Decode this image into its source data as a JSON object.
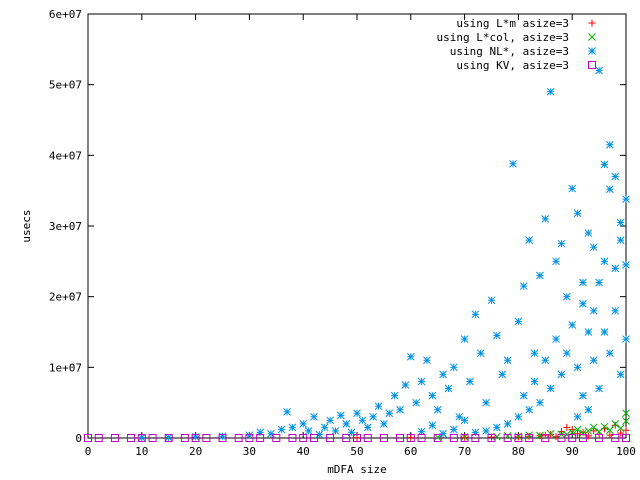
{
  "chart_data": {
    "type": "scatter",
    "title": "",
    "xlabel": "mDFA size",
    "ylabel": "usecs",
    "xlim": [
      0,
      100
    ],
    "ylim": [
      0,
      60000000
    ],
    "x_ticks": [
      0,
      10,
      20,
      30,
      40,
      50,
      60,
      70,
      80,
      90,
      100
    ],
    "x_tick_labels": [
      "0",
      "10",
      "20",
      "30",
      "40",
      "50",
      "60",
      "70",
      "80",
      "90",
      "100"
    ],
    "y_ticks": [
      0,
      10000000,
      20000000,
      30000000,
      40000000,
      50000000,
      60000000
    ],
    "y_tick_labels": [
      "0",
      "1e+07",
      "2e+07",
      "3e+07",
      "4e+07",
      "5e+07",
      "6e+07"
    ],
    "grid": false,
    "legend_position": "top-right",
    "series": [
      {
        "name": "using L*m asize=3",
        "marker": "plus",
        "color": "#ff0000",
        "points": [
          [
            80,
            150000
          ],
          [
            82,
            250000
          ],
          [
            84,
            300000
          ],
          [
            85,
            400000
          ],
          [
            86,
            500000
          ],
          [
            87,
            200000
          ],
          [
            88,
            900000
          ],
          [
            89,
            1500000
          ],
          [
            90,
            1200000
          ],
          [
            91,
            600000
          ],
          [
            92,
            800000
          ],
          [
            93,
            300000
          ],
          [
            94,
            1000000
          ],
          [
            95,
            500000
          ],
          [
            96,
            1300000
          ],
          [
            97,
            400000
          ],
          [
            98,
            1800000
          ],
          [
            99,
            700000
          ],
          [
            100,
            1100000
          ],
          [
            70,
            100000
          ],
          [
            75,
            120000
          ],
          [
            60,
            60000
          ],
          [
            50,
            40000
          ]
        ]
      },
      {
        "name": "using L*col, asize=3",
        "marker": "cross",
        "color": "#00b000",
        "points": [
          [
            76,
            200000
          ],
          [
            78,
            300000
          ],
          [
            80,
            250000
          ],
          [
            82,
            400000
          ],
          [
            84,
            350000
          ],
          [
            86,
            600000
          ],
          [
            88,
            500000
          ],
          [
            90,
            800000
          ],
          [
            91,
            1200000
          ],
          [
            92,
            700000
          ],
          [
            94,
            1500000
          ],
          [
            95,
            900000
          ],
          [
            96,
            1600000
          ],
          [
            97,
            1100000
          ],
          [
            98,
            2000000
          ],
          [
            99,
            1400000
          ],
          [
            100,
            3500000
          ],
          [
            100,
            2400000
          ],
          [
            93,
            1000000
          ],
          [
            89,
            500000
          ],
          [
            70,
            150000
          ],
          [
            65,
            100000
          ]
        ]
      },
      {
        "name": "using NL*, asize=3",
        "marker": "star",
        "color": "#0090e0",
        "points": [
          [
            10,
            50000
          ],
          [
            15,
            80000
          ],
          [
            20,
            150000
          ],
          [
            25,
            250000
          ],
          [
            30,
            400000
          ],
          [
            32,
            800000
          ],
          [
            34,
            600000
          ],
          [
            36,
            1200000
          ],
          [
            37,
            3700000
          ],
          [
            38,
            1500000
          ],
          [
            40,
            2000000
          ],
          [
            41,
            1000000
          ],
          [
            42,
            3000000
          ],
          [
            43,
            500000
          ],
          [
            44,
            1500000
          ],
          [
            45,
            2500000
          ],
          [
            46,
            1000000
          ],
          [
            47,
            3200000
          ],
          [
            48,
            2000000
          ],
          [
            49,
            800000
          ],
          [
            50,
            3500000
          ],
          [
            51,
            2500000
          ],
          [
            52,
            1500000
          ],
          [
            53,
            3000000
          ],
          [
            54,
            4500000
          ],
          [
            55,
            2000000
          ],
          [
            56,
            3500000
          ],
          [
            57,
            6000000
          ],
          [
            58,
            4000000
          ],
          [
            59,
            7500000
          ],
          [
            60,
            11500000
          ],
          [
            61,
            5000000
          ],
          [
            62,
            8000000
          ],
          [
            63,
            11000000
          ],
          [
            64,
            6000000
          ],
          [
            65,
            4000000
          ],
          [
            66,
            9000000
          ],
          [
            67,
            7000000
          ],
          [
            68,
            10000000
          ],
          [
            69,
            3000000
          ],
          [
            70,
            14000000
          ],
          [
            71,
            8000000
          ],
          [
            72,
            17500000
          ],
          [
            73,
            12000000
          ],
          [
            74,
            5000000
          ],
          [
            75,
            19500000
          ],
          [
            76,
            14500000
          ],
          [
            77,
            9000000
          ],
          [
            78,
            11000000
          ],
          [
            79,
            38800000
          ],
          [
            80,
            16500000
          ],
          [
            81,
            21500000
          ],
          [
            82,
            28000000
          ],
          [
            83,
            12000000
          ],
          [
            84,
            23000000
          ],
          [
            85,
            31000000
          ],
          [
            86,
            49000000
          ],
          [
            87,
            25000000
          ],
          [
            88,
            27500000
          ],
          [
            89,
            20000000
          ],
          [
            90,
            35300000
          ],
          [
            91,
            31800000
          ],
          [
            92,
            22000000
          ],
          [
            93,
            29000000
          ],
          [
            94,
            18000000
          ],
          [
            95,
            52000000
          ],
          [
            96,
            38700000
          ],
          [
            97,
            41500000
          ],
          [
            98,
            37000000
          ],
          [
            99,
            30500000
          ],
          [
            100,
            33800000
          ],
          [
            96,
            25000000
          ],
          [
            97,
            35200000
          ],
          [
            98,
            24000000
          ],
          [
            99,
            28000000
          ],
          [
            100,
            24500000
          ],
          [
            95,
            22000000
          ],
          [
            94,
            27000000
          ],
          [
            93,
            15000000
          ],
          [
            92,
            19000000
          ],
          [
            91,
            10000000
          ],
          [
            90,
            16000000
          ],
          [
            89,
            12000000
          ],
          [
            88,
            9000000
          ],
          [
            87,
            14000000
          ],
          [
            86,
            7000000
          ],
          [
            85,
            11000000
          ],
          [
            84,
            5000000
          ],
          [
            83,
            8000000
          ],
          [
            82,
            4000000
          ],
          [
            81,
            6000000
          ],
          [
            96,
            15000000
          ],
          [
            97,
            12000000
          ],
          [
            98,
            18000000
          ],
          [
            99,
            9000000
          ],
          [
            100,
            14000000
          ],
          [
            95,
            7000000
          ],
          [
            94,
            11000000
          ],
          [
            93,
            4000000
          ],
          [
            92,
            6000000
          ],
          [
            91,
            3000000
          ],
          [
            80,
            3000000
          ],
          [
            78,
            2000000
          ],
          [
            76,
            1500000
          ],
          [
            74,
            1000000
          ],
          [
            72,
            800000
          ],
          [
            70,
            2500000
          ],
          [
            68,
            1200000
          ],
          [
            66,
            600000
          ],
          [
            64,
            1800000
          ],
          [
            62,
            900000
          ]
        ]
      },
      {
        "name": "using KV, asize=3",
        "marker": "box",
        "color": "#c000c0",
        "points": [
          [
            0,
            0
          ],
          [
            5,
            0
          ],
          [
            10,
            0
          ],
          [
            15,
            0
          ],
          [
            20,
            0
          ],
          [
            25,
            0
          ],
          [
            30,
            0
          ],
          [
            35,
            0
          ],
          [
            40,
            0
          ],
          [
            45,
            0
          ],
          [
            50,
            0
          ],
          [
            55,
            0
          ],
          [
            60,
            0
          ],
          [
            65,
            0
          ],
          [
            70,
            0
          ],
          [
            75,
            0
          ],
          [
            80,
            0
          ],
          [
            85,
            0
          ],
          [
            90,
            0
          ],
          [
            95,
            0
          ],
          [
            100,
            0
          ],
          [
            2,
            0
          ],
          [
            8,
            0
          ],
          [
            12,
            0
          ],
          [
            18,
            0
          ],
          [
            22,
            0
          ],
          [
            28,
            0
          ],
          [
            32,
            0
          ],
          [
            38,
            0
          ],
          [
            42,
            0
          ],
          [
            48,
            0
          ],
          [
            52,
            0
          ],
          [
            58,
            0
          ],
          [
            62,
            0
          ],
          [
            68,
            0
          ],
          [
            72,
            0
          ],
          [
            78,
            0
          ],
          [
            82,
            0
          ],
          [
            88,
            0
          ],
          [
            92,
            0
          ],
          [
            98,
            0
          ]
        ]
      }
    ]
  }
}
